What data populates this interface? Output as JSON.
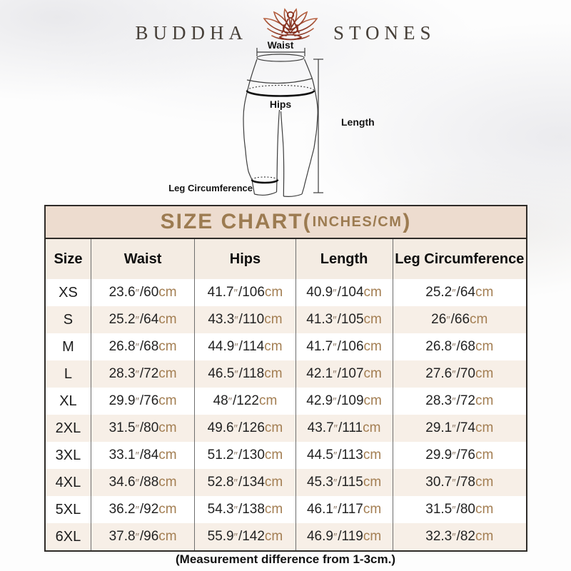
{
  "brand": {
    "word_left": "BUDDHA",
    "word_right": "STONES",
    "logo_color": "#9c4a2f"
  },
  "diagram": {
    "labels": {
      "waist": "Waist",
      "hips": "Hips",
      "length": "Length",
      "leg_circumference": "Leg Circumference"
    }
  },
  "size_chart": {
    "title_main": "SIZE CHART(",
    "title_sub": "INCHES/CM",
    "title_close": ")",
    "columns": [
      "Size",
      "Waist",
      "Hips",
      "Length",
      "Leg Circumference"
    ],
    "units": {
      "inch_mark": "″",
      "separator": "/",
      "cm_label": "cm"
    },
    "rows": [
      {
        "size": "XS",
        "waist": {
          "in": "23.6",
          "cm": "60"
        },
        "hips": {
          "in": "41.7",
          "cm": "106"
        },
        "length": {
          "in": "40.9",
          "cm": "104"
        },
        "leg": {
          "in": "25.2",
          "cm": "64"
        }
      },
      {
        "size": "S",
        "waist": {
          "in": "25.2",
          "cm": "64"
        },
        "hips": {
          "in": "43.3",
          "cm": "110"
        },
        "length": {
          "in": "41.3",
          "cm": "105"
        },
        "leg": {
          "in": "26",
          "cm": "66"
        }
      },
      {
        "size": "M",
        "waist": {
          "in": "26.8",
          "cm": "68"
        },
        "hips": {
          "in": "44.9",
          "cm": "114"
        },
        "length": {
          "in": "41.7",
          "cm": "106"
        },
        "leg": {
          "in": "26.8",
          "cm": "68"
        }
      },
      {
        "size": "L",
        "waist": {
          "in": "28.3",
          "cm": "72"
        },
        "hips": {
          "in": "46.5",
          "cm": "118"
        },
        "length": {
          "in": "42.1",
          "cm": "107"
        },
        "leg": {
          "in": "27.6",
          "cm": "70"
        }
      },
      {
        "size": "XL",
        "waist": {
          "in": "29.9",
          "cm": "76"
        },
        "hips": {
          "in": "48",
          "cm": "122"
        },
        "length": {
          "in": "42.9",
          "cm": "109"
        },
        "leg": {
          "in": "28.3",
          "cm": "72"
        }
      },
      {
        "size": "2XL",
        "waist": {
          "in": "31.5",
          "cm": "80"
        },
        "hips": {
          "in": "49.6",
          "cm": "126"
        },
        "length": {
          "in": "43.7",
          "cm": "111"
        },
        "leg": {
          "in": "29.1",
          "cm": "74"
        }
      },
      {
        "size": "3XL",
        "waist": {
          "in": "33.1",
          "cm": "84"
        },
        "hips": {
          "in": "51.2",
          "cm": "130"
        },
        "length": {
          "in": "44.5",
          "cm": "113"
        },
        "leg": {
          "in": "29.9",
          "cm": "76"
        }
      },
      {
        "size": "4XL",
        "waist": {
          "in": "34.6",
          "cm": "88"
        },
        "hips": {
          "in": "52.8",
          "cm": "134"
        },
        "length": {
          "in": "45.3",
          "cm": "115"
        },
        "leg": {
          "in": "30.7",
          "cm": "78"
        }
      },
      {
        "size": "5XL",
        "waist": {
          "in": "36.2",
          "cm": "92"
        },
        "hips": {
          "in": "54.3",
          "cm": "138"
        },
        "length": {
          "in": "46.1",
          "cm": "117"
        },
        "leg": {
          "in": "31.5",
          "cm": "80"
        }
      },
      {
        "size": "6XL",
        "waist": {
          "in": "37.8",
          "cm": "96"
        },
        "hips": {
          "in": "55.9",
          "cm": "142"
        },
        "length": {
          "in": "46.9",
          "cm": "119"
        },
        "leg": {
          "in": "32.3",
          "cm": "82"
        }
      }
    ]
  },
  "footer": {
    "note": "(Measurement difference from 1-3cm.)"
  },
  "colors": {
    "title_bar_bg": "#eddccf",
    "title_text": "#9c7b51",
    "header_row_bg": "#f4ece3",
    "stripe_row_bg": "#f7efe7",
    "unit_text": "#a37e52",
    "table_border": "#2e2b28"
  }
}
